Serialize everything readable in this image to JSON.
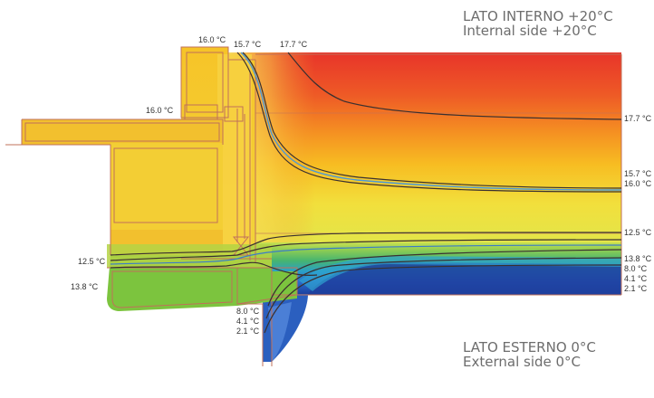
{
  "internal_side": {
    "title_it": "LATO INTERNO +20°C",
    "title_en": "Internal side +20°C"
  },
  "external_side": {
    "title_it": "LATO ESTERNO 0°C",
    "title_en": "External side 0°C"
  },
  "isotherm_labels": {
    "top": [
      "16.0 °C",
      "15.7 °C",
      "17.7 °C"
    ],
    "frame": [
      "16.0 °C"
    ],
    "left": [
      "12.5 °C",
      "13.8 °C"
    ],
    "right": [
      "17.7 °C",
      "15.7 °C",
      "16.0 °C",
      "12.5 °C",
      "13.8 °C",
      "8.0 °C",
      "4.1 °C",
      "2.1 °C"
    ],
    "bottom": [
      "8.0 °C",
      "4.1 °C",
      "2.1 °C"
    ]
  },
  "colors": {
    "hot": "#e8342a",
    "warm": "#f6b21e",
    "mid": "#f4e64a",
    "green": "#6cc04a",
    "cold": "#1e48a8",
    "isotherm_line": "#3a3030",
    "isotherm_highlight": "#4a98d8",
    "outline": "#c0705a",
    "text": "#6d6d6d"
  }
}
